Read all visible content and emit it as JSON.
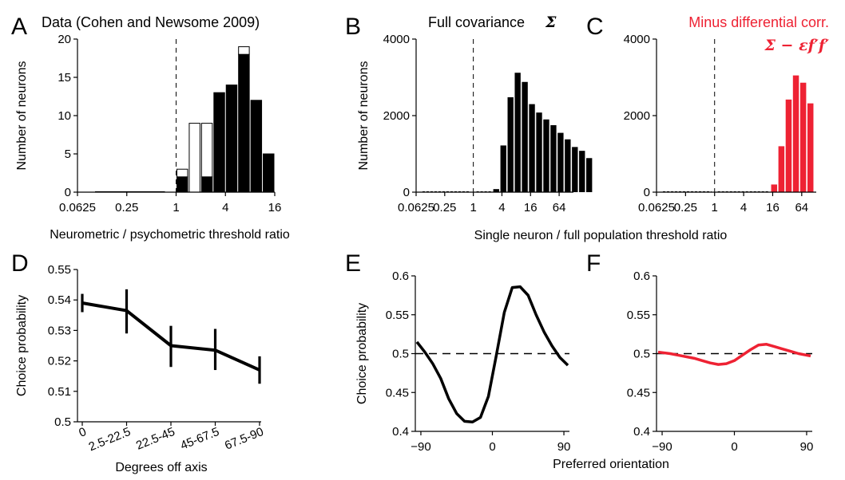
{
  "figure": {
    "xlabel_ab": "Neurometric / psychometric threshold ratio",
    "xlabel_bc": "Single neuron / full population threshold ratio"
  },
  "colors": {
    "black": "#000000",
    "red": "#ee2233"
  },
  "chart_data": [
    {
      "id": "A",
      "panel_label": "A",
      "type": "bar",
      "title": "Data (Cohen and Newsome 2009)",
      "ylabel": "Number of neurons",
      "xlabel": "Neurometric / psychometric threshold ratio",
      "xscale": "log2",
      "xlim": [
        0.0625,
        16
      ],
      "ylim": [
        0,
        20
      ],
      "xticks": [
        0.0625,
        0.25,
        1,
        4,
        16
      ],
      "xtick_labels": [
        "0.0625",
        "0.25",
        "1",
        "4",
        "16"
      ],
      "yticks": [
        0,
        5,
        10,
        15,
        20
      ],
      "ytick_labels": [
        "0",
        "5",
        "10",
        "15",
        "20"
      ],
      "reference_line_x": 1,
      "bin_edges_log2": [
        0,
        0.5,
        1,
        1.5,
        2,
        2.5,
        3,
        3.5,
        4
      ],
      "series": [
        {
          "fill": "black",
          "values": [
            2,
            0,
            2,
            13,
            14,
            18,
            12,
            5
          ]
        },
        {
          "fill": "white",
          "values": [
            1,
            9,
            7,
            0,
            0,
            1,
            0,
            0
          ]
        }
      ]
    },
    {
      "id": "B",
      "panel_label": "B",
      "type": "bar",
      "title": "Full covariance",
      "title_symbol": "Σ",
      "ylabel": "Number of neurons",
      "xscale": "log2",
      "xlim": [
        0.0625,
        128
      ],
      "ylim": [
        0,
        4000
      ],
      "xticks": [
        0.0625,
        0.25,
        1,
        4,
        16,
        64
      ],
      "xtick_labels": [
        "0.0625",
        "0.25",
        "1",
        "4",
        "16",
        "64"
      ],
      "yticks": [
        0,
        2000,
        4000
      ],
      "ytick_labels": [
        "0",
        "2000",
        "4000"
      ],
      "reference_line_x": 1,
      "bin_start_log2": 1.35,
      "bin_width_log2": 0.5,
      "values": [
        80,
        1220,
        2480,
        3120,
        2880,
        2300,
        2080,
        1900,
        1750,
        1550,
        1380,
        1180,
        1080,
        890
      ],
      "color": "black"
    },
    {
      "id": "C",
      "panel_label": "C",
      "type": "bar",
      "title": "Minus differential corr.",
      "title_formula": "Σ − εf′f′",
      "xscale": "log2",
      "xlim": [
        0.0625,
        128
      ],
      "ylim": [
        0,
        4000
      ],
      "xticks": [
        0.0625,
        0.25,
        1,
        4,
        16,
        64
      ],
      "xtick_labels": [
        "0.0625",
        "0.25",
        "1",
        "4",
        "16",
        "64"
      ],
      "yticks": [
        0,
        2000,
        4000
      ],
      "ytick_labels": [
        "0",
        "2000",
        "4000"
      ],
      "reference_line_x": 1,
      "bin_start_log2": 3.85,
      "bin_width_log2": 0.5,
      "values": [
        200,
        1200,
        2420,
        3050,
        2860,
        2320
      ],
      "color": "red"
    },
    {
      "id": "D",
      "panel_label": "D",
      "type": "line",
      "ylabel": "Choice probability",
      "xlabel": "Degrees off axis",
      "categories": [
        "0",
        "2.5-22.5",
        "22.5-45",
        "45-67.5",
        "67.5-90"
      ],
      "values": [
        0.539,
        0.5365,
        0.525,
        0.5235,
        0.517
      ],
      "err_low": [
        0.536,
        0.529,
        0.518,
        0.517,
        0.5125
      ],
      "err_high": [
        0.542,
        0.5435,
        0.5315,
        0.5305,
        0.5215
      ],
      "ylim": [
        0.5,
        0.55
      ],
      "yticks": [
        0.5,
        0.51,
        0.52,
        0.53,
        0.54,
        0.55
      ],
      "ytick_labels": [
        "0.5",
        "0.51",
        "0.52",
        "0.53",
        "0.54",
        "0.55"
      ],
      "color": "black"
    },
    {
      "id": "E",
      "panel_label": "E",
      "type": "line",
      "ylabel": "Choice probability",
      "xlabel": "Preferred orientation",
      "x": [
        -95,
        -85,
        -75,
        -65,
        -55,
        -45,
        -35,
        -25,
        -15,
        -5,
        5,
        15,
        25,
        35,
        45,
        55,
        65,
        75,
        85,
        95
      ],
      "y": [
        0.515,
        0.502,
        0.487,
        0.468,
        0.442,
        0.423,
        0.413,
        0.412,
        0.418,
        0.445,
        0.498,
        0.553,
        0.585,
        0.586,
        0.575,
        0.55,
        0.528,
        0.51,
        0.495,
        0.485
      ],
      "xlim": [
        -97,
        97
      ],
      "ylim": [
        0.4,
        0.6
      ],
      "xticks": [
        -90,
        0,
        90
      ],
      "xtick_labels": [
        "−90",
        "0",
        "90"
      ],
      "yticks": [
        0.4,
        0.45,
        0.5,
        0.55,
        0.6
      ],
      "ytick_labels": [
        "0.4",
        "0.45",
        "0.5",
        "0.55",
        "0.6"
      ],
      "reference_line_y": 0.5,
      "color": "black"
    },
    {
      "id": "F",
      "panel_label": "F",
      "type": "line",
      "x": [
        -95,
        -80,
        -65,
        -50,
        -40,
        -30,
        -20,
        -10,
        0,
        10,
        20,
        30,
        40,
        50,
        60,
        70,
        80,
        95
      ],
      "y": [
        0.502,
        0.5,
        0.497,
        0.494,
        0.491,
        0.488,
        0.486,
        0.487,
        0.491,
        0.498,
        0.505,
        0.511,
        0.512,
        0.509,
        0.506,
        0.503,
        0.5,
        0.497
      ],
      "xlim": [
        -97,
        97
      ],
      "ylim": [
        0.4,
        0.6
      ],
      "xticks": [
        -90,
        0,
        90
      ],
      "xtick_labels": [
        "−90",
        "0",
        "90"
      ],
      "yticks": [
        0.4,
        0.45,
        0.5,
        0.55,
        0.6
      ],
      "ytick_labels": [
        "0.4",
        "0.45",
        "0.5",
        "0.55",
        "0.6"
      ],
      "reference_line_y": 0.5,
      "color": "red"
    }
  ]
}
